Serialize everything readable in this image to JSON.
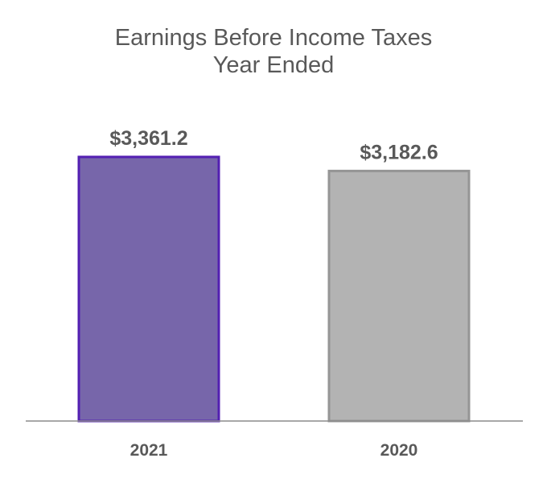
{
  "chart_data": {
    "type": "bar",
    "title": [
      "Earnings Before Income Taxes",
      "Year Ended"
    ],
    "categories": [
      "2021",
      "2020"
    ],
    "values": [
      3361.2,
      3182.6
    ],
    "data_labels": [
      "$3,361.2",
      "$3,182.6"
    ],
    "xlabel": "",
    "ylabel": "",
    "ylim": [
      0,
      4000
    ],
    "grid": false,
    "legend": "none",
    "colors": {
      "fills": [
        "#7766aa",
        "#b3b3b3"
      ],
      "borders": [
        "#5320b2",
        "#959595"
      ],
      "text": "#595959",
      "axis": "#8c8c8c"
    }
  }
}
